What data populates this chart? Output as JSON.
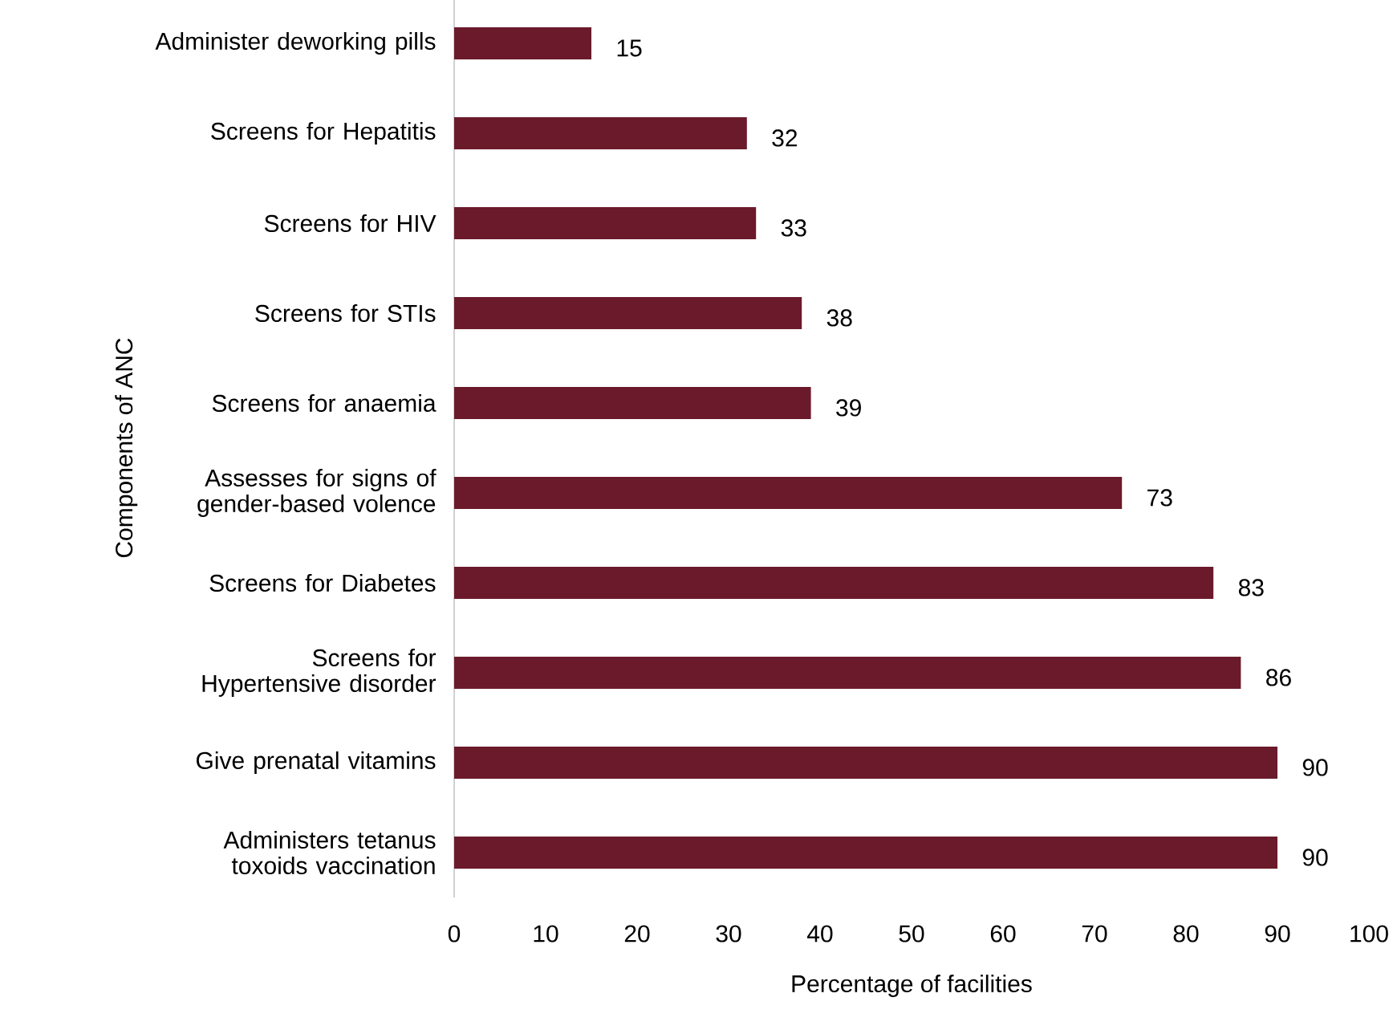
{
  "chart_data": {
    "type": "bar",
    "orientation": "horizontal",
    "xlabel": "Percentage of facilities",
    "ylabel": "Components of ANC",
    "categories": [
      "Administer deworking pills",
      "Screens for Hepatitis",
      "Screens for HIV",
      "Screens for STIs",
      "Screens for anaemia",
      "Assesses for signs of gender-based volence",
      "Screens for Diabetes",
      "Screens for Hypertensive disorder",
      "Give prenatal vitamins",
      "Administers tetanus toxoids vaccination"
    ],
    "values": [
      15,
      32,
      33,
      38,
      39,
      73,
      83,
      86,
      90,
      90
    ],
    "color": "#6b1a2b",
    "data_labels": true,
    "xlim": [
      0,
      100
    ],
    "xticks": [
      0,
      10,
      20,
      30,
      40,
      50,
      60,
      70,
      80,
      90,
      100
    ]
  }
}
